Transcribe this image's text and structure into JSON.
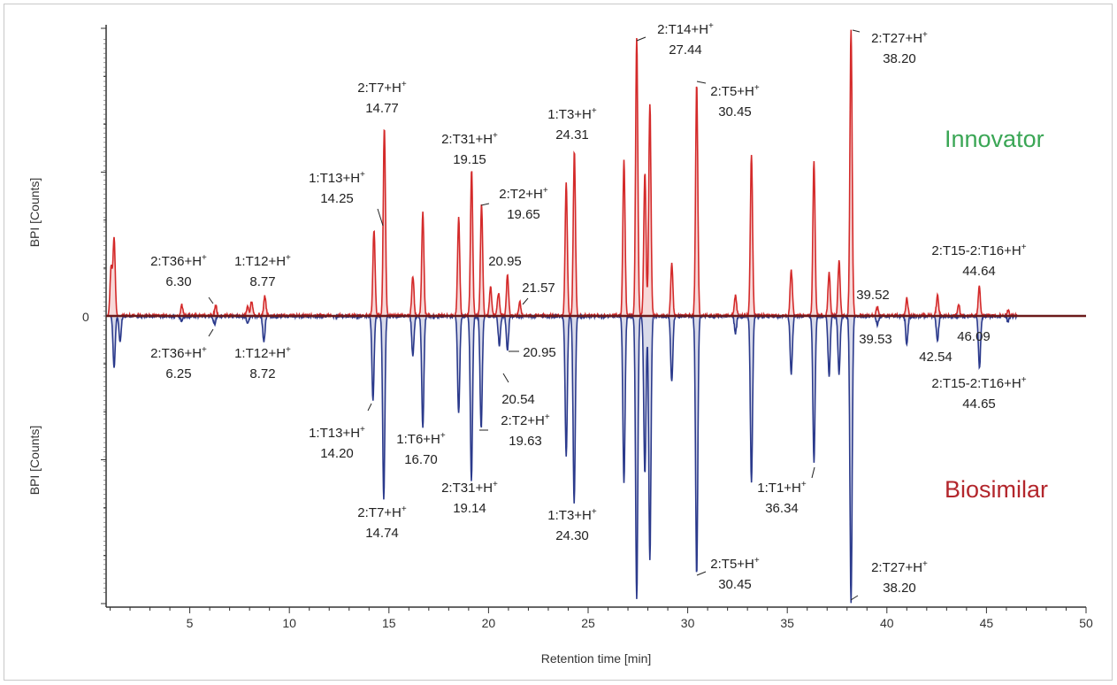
{
  "chart_data": {
    "type": "line",
    "xlabel": "Retention time [min]",
    "ylabel_top": "BPI [Counts]",
    "ylabel_bottom": "BPI [Counts]",
    "xlim": [
      0.8,
      50
    ],
    "xticks": [
      5,
      10,
      15,
      20,
      25,
      30,
      35,
      40,
      45,
      50
    ],
    "ylim": [
      -1.0,
      1.0
    ],
    "zero_label": "0",
    "grid": false,
    "colors": {
      "innovator": "#d42a2a",
      "biosimilar": "#2b3a8c"
    },
    "series": [
      {
        "name": "Innovator",
        "label_color": "#3aa655",
        "direction": "up",
        "peaks": [
          {
            "x": 1.2,
            "y": 0.27
          },
          {
            "x": 1.05,
            "y": 0.17
          },
          {
            "x": 4.6,
            "y": 0.04
          },
          {
            "x": 6.3,
            "y": 0.035
          },
          {
            "x": 7.9,
            "y": 0.03
          },
          {
            "x": 8.1,
            "y": 0.05
          },
          {
            "x": 8.77,
            "y": 0.07
          },
          {
            "x": 14.25,
            "y": 0.3
          },
          {
            "x": 14.77,
            "y": 0.66
          },
          {
            "x": 16.2,
            "y": 0.14
          },
          {
            "x": 16.7,
            "y": 0.36
          },
          {
            "x": 18.5,
            "y": 0.34
          },
          {
            "x": 19.15,
            "y": 0.51
          },
          {
            "x": 19.65,
            "y": 0.39
          },
          {
            "x": 20.1,
            "y": 0.1
          },
          {
            "x": 20.5,
            "y": 0.08
          },
          {
            "x": 20.95,
            "y": 0.14
          },
          {
            "x": 21.57,
            "y": 0.05
          },
          {
            "x": 23.9,
            "y": 0.46
          },
          {
            "x": 24.31,
            "y": 0.57
          },
          {
            "x": 26.8,
            "y": 0.54
          },
          {
            "x": 27.44,
            "y": 0.97
          },
          {
            "x": 27.85,
            "y": 0.5
          },
          {
            "x": 28.1,
            "y": 0.74
          },
          {
            "x": 29.2,
            "y": 0.18
          },
          {
            "x": 30.45,
            "y": 0.81
          },
          {
            "x": 32.4,
            "y": 0.07
          },
          {
            "x": 33.2,
            "y": 0.56
          },
          {
            "x": 35.2,
            "y": 0.16
          },
          {
            "x": 36.34,
            "y": 0.54
          },
          {
            "x": 37.1,
            "y": 0.15
          },
          {
            "x": 37.6,
            "y": 0.19
          },
          {
            "x": 38.2,
            "y": 1.0
          },
          {
            "x": 39.52,
            "y": 0.03
          },
          {
            "x": 41.0,
            "y": 0.06
          },
          {
            "x": 42.54,
            "y": 0.07
          },
          {
            "x": 43.6,
            "y": 0.04
          },
          {
            "x": 44.64,
            "y": 0.1
          },
          {
            "x": 46.09,
            "y": 0.02
          }
        ]
      },
      {
        "name": "Biosimilar",
        "label_color": "#b3262c",
        "direction": "down",
        "peaks": [
          {
            "x": 1.2,
            "y": 0.18
          },
          {
            "x": 1.5,
            "y": 0.09
          },
          {
            "x": 4.6,
            "y": 0.02
          },
          {
            "x": 6.25,
            "y": 0.03
          },
          {
            "x": 7.9,
            "y": 0.03
          },
          {
            "x": 8.72,
            "y": 0.09
          },
          {
            "x": 14.2,
            "y": 0.29
          },
          {
            "x": 14.74,
            "y": 0.64
          },
          {
            "x": 16.2,
            "y": 0.14
          },
          {
            "x": 16.7,
            "y": 0.39
          },
          {
            "x": 18.5,
            "y": 0.34
          },
          {
            "x": 19.14,
            "y": 0.57
          },
          {
            "x": 19.63,
            "y": 0.39
          },
          {
            "x": 20.54,
            "y": 0.1
          },
          {
            "x": 20.95,
            "y": 0.12
          },
          {
            "x": 23.9,
            "y": 0.49
          },
          {
            "x": 24.3,
            "y": 0.65
          },
          {
            "x": 26.8,
            "y": 0.58
          },
          {
            "x": 27.44,
            "y": 0.99
          },
          {
            "x": 27.85,
            "y": 0.55
          },
          {
            "x": 28.1,
            "y": 0.85
          },
          {
            "x": 29.2,
            "y": 0.23
          },
          {
            "x": 30.45,
            "y": 0.9
          },
          {
            "x": 32.4,
            "y": 0.06
          },
          {
            "x": 33.2,
            "y": 0.58
          },
          {
            "x": 35.2,
            "y": 0.2
          },
          {
            "x": 36.34,
            "y": 0.51
          },
          {
            "x": 37.1,
            "y": 0.21
          },
          {
            "x": 37.6,
            "y": 0.2
          },
          {
            "x": 38.2,
            "y": 1.0
          },
          {
            "x": 39.53,
            "y": 0.03
          },
          {
            "x": 41.0,
            "y": 0.1
          },
          {
            "x": 42.54,
            "y": 0.09
          },
          {
            "x": 44.65,
            "y": 0.18
          },
          {
            "x": 46.09,
            "y": 0.02
          }
        ]
      }
    ],
    "annotations": [
      {
        "id": "i-t36",
        "series": "Innovator",
        "name": "2:T36+H",
        "value": "6.30",
        "x": 6.3
      },
      {
        "id": "i-t12",
        "series": "Innovator",
        "name": "1:T12+H",
        "value": "8.77",
        "x": 8.77
      },
      {
        "id": "i-t13",
        "series": "Innovator",
        "name": "1:T13+H",
        "value": "14.25",
        "x": 14.25
      },
      {
        "id": "i-t7",
        "series": "Innovator",
        "name": "2:T7+H",
        "value": "14.77",
        "x": 14.77
      },
      {
        "id": "i-t31",
        "series": "Innovator",
        "name": "2:T31+H",
        "value": "19.15",
        "x": 19.15
      },
      {
        "id": "i-t2",
        "series": "Innovator",
        "name": "2:T2+H",
        "value": "19.65",
        "x": 19.65
      },
      {
        "id": "i-2095",
        "series": "Innovator",
        "name": "",
        "value": "20.95",
        "x": 20.95
      },
      {
        "id": "i-2157",
        "series": "Innovator",
        "name": "",
        "value": "21.57",
        "x": 21.57
      },
      {
        "id": "i-t3",
        "series": "Innovator",
        "name": "1:T3+H",
        "value": "24.31",
        "x": 24.31
      },
      {
        "id": "i-t14",
        "series": "Innovator",
        "name": "2:T14+H",
        "value": "27.44",
        "x": 27.44
      },
      {
        "id": "i-t5",
        "series": "Innovator",
        "name": "2:T5+H",
        "value": "30.45",
        "x": 30.45
      },
      {
        "id": "i-t27",
        "series": "Innovator",
        "name": "2:T27+H",
        "value": "38.20",
        "x": 38.2
      },
      {
        "id": "i-3952",
        "series": "Innovator",
        "name": "",
        "value": "39.52",
        "x": 39.52
      },
      {
        "id": "i-t15",
        "series": "Innovator",
        "name": "2:T15-2:T16+H",
        "value": "44.64",
        "x": 44.64
      },
      {
        "id": "b-t36",
        "series": "Biosimilar",
        "name": "2:T36+H",
        "value": "6.25",
        "x": 6.25
      },
      {
        "id": "b-t12",
        "series": "Biosimilar",
        "name": "1:T12+H",
        "value": "8.72",
        "x": 8.72
      },
      {
        "id": "b-t13",
        "series": "Biosimilar",
        "name": "1:T13+H",
        "value": "14.20",
        "x": 14.2
      },
      {
        "id": "b-t7",
        "series": "Biosimilar",
        "name": "2:T7+H",
        "value": "14.74",
        "x": 14.74
      },
      {
        "id": "b-t6",
        "series": "Biosimilar",
        "name": "1:T6+H",
        "value": "16.70",
        "x": 16.7
      },
      {
        "id": "b-t31",
        "series": "Biosimilar",
        "name": "2:T31+H",
        "value": "19.14",
        "x": 19.14
      },
      {
        "id": "b-t2",
        "series": "Biosimilar",
        "name": "2:T2+H",
        "value": "19.63",
        "x": 19.63
      },
      {
        "id": "b-2095",
        "series": "Biosimilar",
        "name": "",
        "value": "20.95",
        "x": 20.95
      },
      {
        "id": "b-2054",
        "series": "Biosimilar",
        "name": "",
        "value": "20.54",
        "x": 20.54
      },
      {
        "id": "b-t3",
        "series": "Biosimilar",
        "name": "1:T3+H",
        "value": "24.30",
        "x": 24.3
      },
      {
        "id": "b-t5",
        "series": "Biosimilar",
        "name": "2:T5+H",
        "value": "30.45",
        "x": 30.45
      },
      {
        "id": "b-t1",
        "series": "Biosimilar",
        "name": "1:T1+H",
        "value": "36.34",
        "x": 36.34
      },
      {
        "id": "b-t27",
        "series": "Biosimilar",
        "name": "2:T27+H",
        "value": "38.20",
        "x": 38.2
      },
      {
        "id": "b-3953",
        "series": "Biosimilar",
        "name": "",
        "value": "39.53",
        "x": 39.53
      },
      {
        "id": "b-4254",
        "series": "Biosimilar",
        "name": "",
        "value": "42.54",
        "x": 42.54
      },
      {
        "id": "b-t15",
        "series": "Biosimilar",
        "name": "2:T15-2:T16+H",
        "value": "44.65",
        "x": 44.65
      },
      {
        "id": "b-4609",
        "series": "Biosimilar",
        "name": "",
        "value": "46.09",
        "x": 46.09
      }
    ],
    "superscript": "+"
  }
}
